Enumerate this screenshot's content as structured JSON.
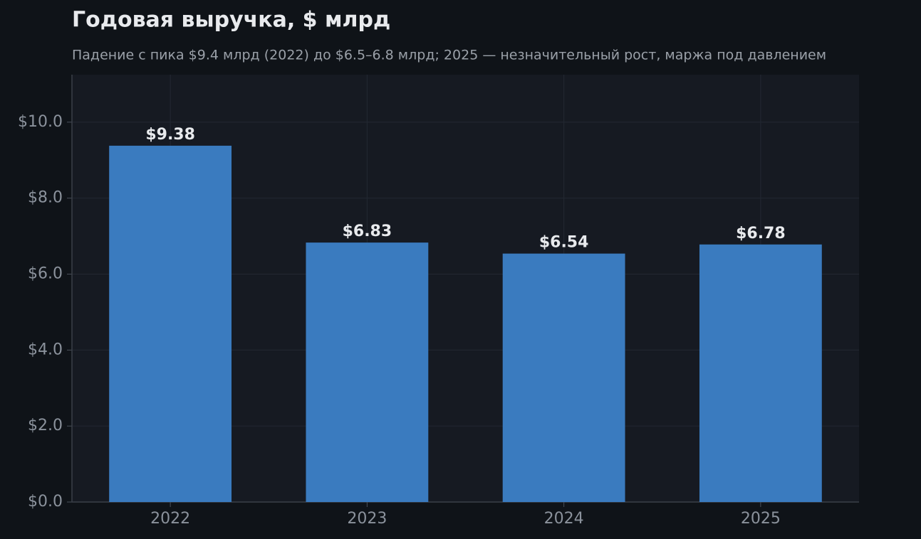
{
  "chart_data": {
    "type": "bar",
    "title": "Годовая выручка, $ млрд",
    "subtitle": "Падение с пика $9.4 млрд (2022) до $6.5–6.8 млрд; 2025 — незначительный рост, маржа под давлением",
    "categories": [
      "2022",
      "2023",
      "2024",
      "2025"
    ],
    "values": [
      9.38,
      6.83,
      6.54,
      6.78
    ],
    "value_labels": [
      "$9.38",
      "$6.83",
      "$6.54",
      "$6.78"
    ],
    "color": "#3a7bbf",
    "ylim": [
      0,
      11.25
    ],
    "yticks": [
      {
        "value": 0,
        "label": "$0.0"
      },
      {
        "value": 2,
        "label": "$2.0"
      },
      {
        "value": 4,
        "label": "$4.0"
      },
      {
        "value": 6,
        "label": "$6.0"
      },
      {
        "value": 8,
        "label": "$8.0"
      },
      {
        "value": 10,
        "label": "$10.0"
      }
    ],
    "grid": true
  }
}
